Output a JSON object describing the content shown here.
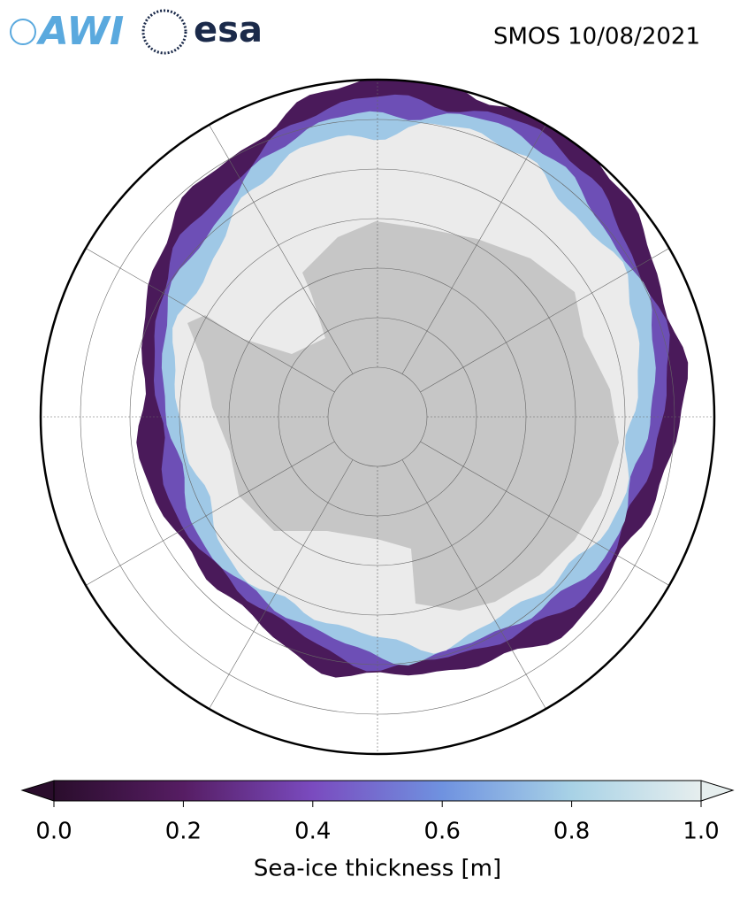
{
  "header": {
    "logos": [
      "AWI",
      "esa"
    ],
    "title": "SMOS 10/08/2021"
  },
  "colorbar": {
    "label": "Sea-ice thickness [m]",
    "lim": [
      0,
      1
    ],
    "ticks": [
      {
        "value": 0,
        "label": "0.0"
      },
      0.2,
      0.4,
      0.6,
      0.8,
      {
        "value": 1,
        "label": "1.0"
      }
    ],
    "colors": [
      "#2a0d2c",
      "#561d63",
      "#7a4bbf",
      "#6f92e0",
      "#a8d2e6",
      "#e6eeee"
    ]
  }
}
